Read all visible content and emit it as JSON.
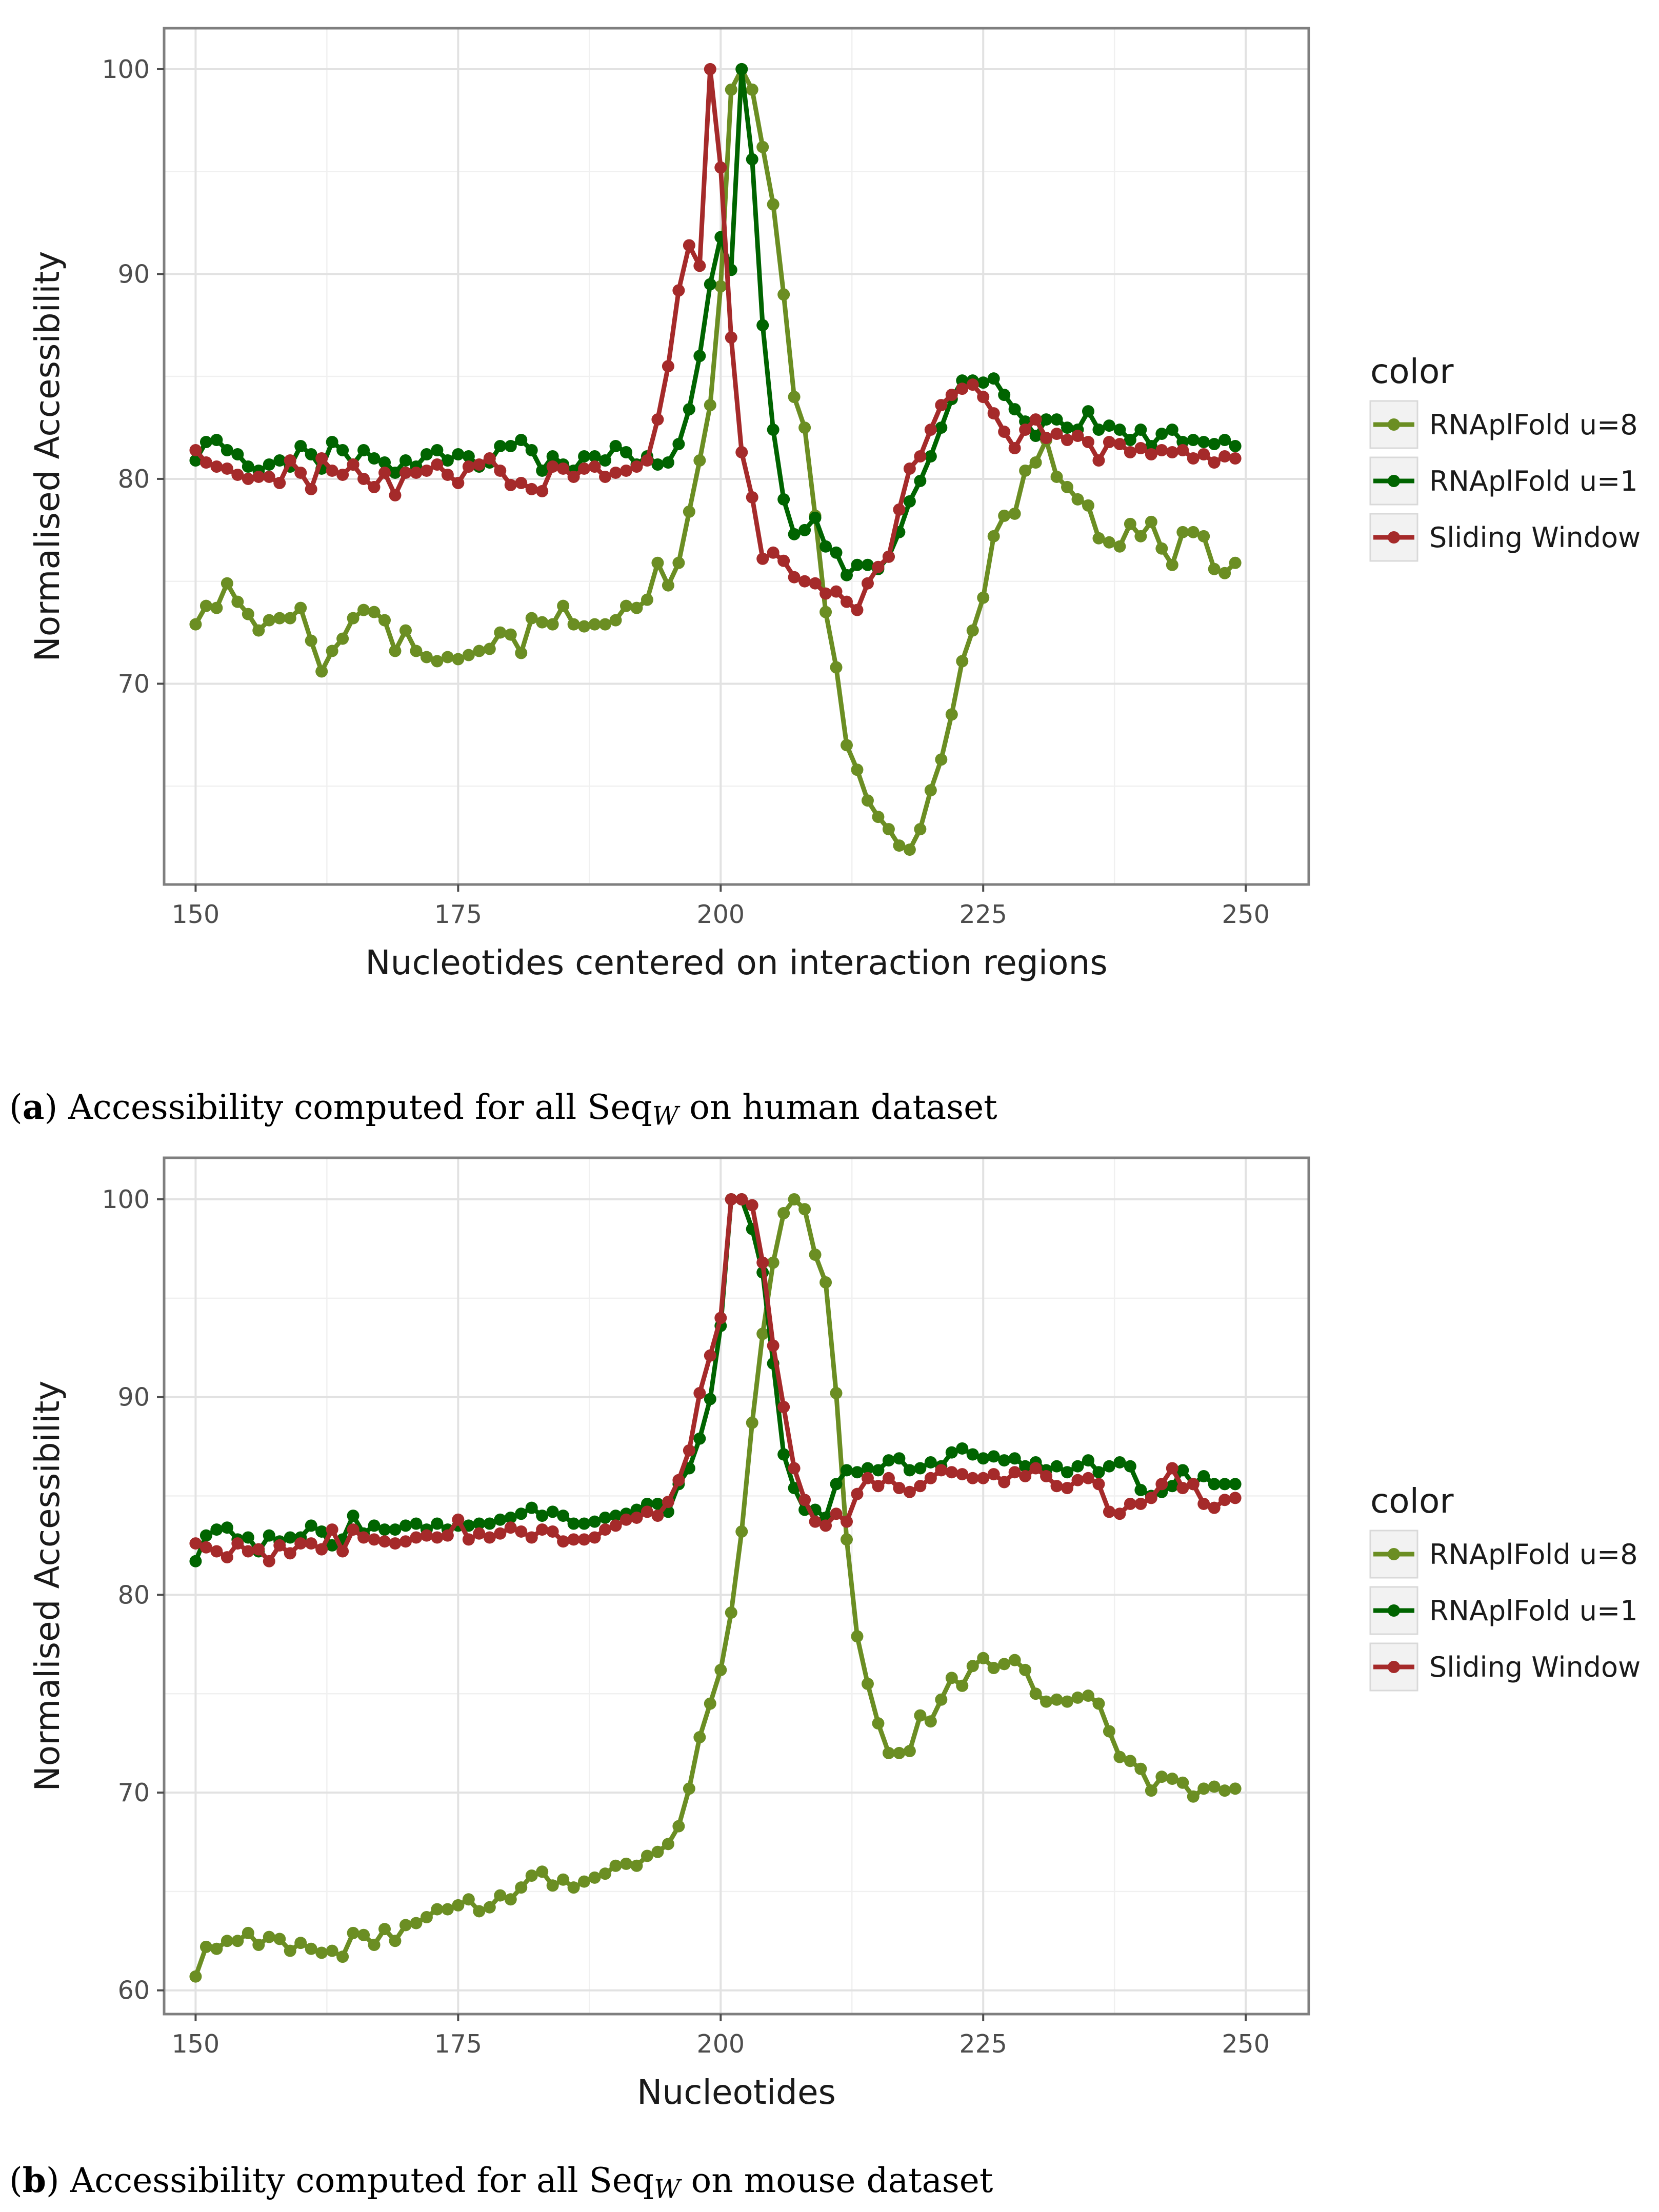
{
  "chart_data": [
    {
      "id": "a",
      "type": "line",
      "xlabel": "Nucleotides centered on interaction regions",
      "ylabel": "Normalised Accessibility",
      "xlim": [
        147,
        256
      ],
      "ylim": [
        60.2,
        102
      ],
      "xticks": [
        150,
        175,
        200,
        225,
        250
      ],
      "yticks": [
        70,
        80,
        90,
        100
      ],
      "grid": true,
      "legend": {
        "title": "color",
        "placement": "right"
      },
      "caption": {
        "label": "a",
        "text": ") Accessibility computed for all Seq",
        "sub": "W",
        "tail": " on human dataset"
      },
      "x_start": 150,
      "series": [
        {
          "name": "RNAplFold u=8",
          "color": "#6b8e23",
          "values": [
            72.9,
            73.8,
            73.7,
            74.9,
            74.0,
            73.4,
            72.6,
            73.1,
            73.2,
            73.2,
            73.7,
            72.1,
            70.6,
            71.6,
            72.2,
            73.2,
            73.6,
            73.5,
            73.1,
            71.6,
            72.6,
            71.6,
            71.3,
            71.1,
            71.3,
            71.2,
            71.4,
            71.6,
            71.7,
            72.5,
            72.4,
            71.5,
            73.2,
            73.0,
            72.9,
            73.8,
            72.9,
            72.8,
            72.9,
            72.9,
            73.1,
            73.8,
            73.7,
            74.1,
            75.9,
            74.8,
            75.9,
            78.4,
            80.9,
            83.6,
            89.4,
            99.0,
            100.0,
            99.0,
            96.2,
            93.4,
            89.0,
            84.0,
            82.5,
            78.2,
            73.5,
            70.8,
            67.0,
            65.8,
            64.3,
            63.5,
            62.9,
            62.1,
            61.9,
            62.9,
            64.8,
            66.3,
            68.5,
            71.1,
            72.6,
            74.2,
            77.2,
            78.2,
            78.3,
            80.4,
            80.8,
            81.9,
            80.1,
            79.6,
            79.0,
            78.7,
            77.1,
            76.9,
            76.7,
            77.8,
            77.2,
            77.9,
            76.6,
            75.8,
            77.4,
            77.4,
            77.2,
            75.6,
            75.4,
            75.9
          ]
        },
        {
          "name": "RNAplFold u=1",
          "color": "#006400",
          "values": [
            80.9,
            81.8,
            81.9,
            81.4,
            81.2,
            80.6,
            80.4,
            80.7,
            80.9,
            80.6,
            81.6,
            81.2,
            80.5,
            81.8,
            81.4,
            80.7,
            81.4,
            81.0,
            80.8,
            80.3,
            80.9,
            80.6,
            81.2,
            81.4,
            80.9,
            81.2,
            81.1,
            80.6,
            80.8,
            81.6,
            81.6,
            81.9,
            81.4,
            80.4,
            81.1,
            80.7,
            80.4,
            81.1,
            81.1,
            80.9,
            81.6,
            81.3,
            80.7,
            81.1,
            80.7,
            80.8,
            81.7,
            83.4,
            86.0,
            89.5,
            91.8,
            90.2,
            100.0,
            95.6,
            87.5,
            82.4,
            79.0,
            77.3,
            77.5,
            78.1,
            76.7,
            76.4,
            75.3,
            75.8,
            75.8,
            75.6,
            76.2,
            77.4,
            78.9,
            79.9,
            81.1,
            82.5,
            83.9,
            84.8,
            84.8,
            84.7,
            84.9,
            84.1,
            83.4,
            82.8,
            82.1,
            82.9,
            82.9,
            82.5,
            82.4,
            83.3,
            82.4,
            82.6,
            82.4,
            81.9,
            82.4,
            81.6,
            82.2,
            82.4,
            81.8,
            81.9,
            81.8,
            81.7,
            81.9,
            81.6
          ]
        },
        {
          "name": "Sliding Window",
          "color": "#a52a2a",
          "values": [
            81.4,
            80.8,
            80.6,
            80.5,
            80.2,
            80.0,
            80.1,
            80.1,
            79.8,
            80.9,
            80.3,
            79.5,
            81.0,
            80.4,
            80.2,
            80.7,
            80.0,
            79.6,
            80.3,
            79.2,
            80.3,
            80.3,
            80.4,
            80.7,
            80.2,
            79.8,
            80.6,
            80.7,
            81.0,
            80.4,
            79.7,
            79.8,
            79.5,
            79.4,
            80.6,
            80.5,
            80.1,
            80.5,
            80.6,
            80.1,
            80.3,
            80.4,
            80.6,
            80.9,
            82.9,
            85.5,
            89.2,
            91.4,
            90.4,
            100.0,
            95.2,
            86.9,
            81.3,
            79.1,
            76.1,
            76.4,
            76.0,
            75.2,
            75.0,
            74.9,
            74.4,
            74.5,
            74.0,
            73.6,
            74.9,
            75.7,
            76.2,
            78.5,
            80.5,
            81.1,
            82.4,
            83.6,
            84.1,
            84.4,
            84.6,
            84.0,
            83.2,
            82.3,
            81.5,
            82.4,
            82.9,
            82.0,
            82.2,
            81.9,
            82.1,
            81.8,
            80.9,
            81.8,
            81.7,
            81.3,
            81.5,
            81.2,
            81.4,
            81.3,
            81.4,
            81.0,
            81.2,
            80.8,
            81.1,
            81.0
          ]
        }
      ]
    },
    {
      "id": "b",
      "type": "line",
      "xlabel": "Nucleotides",
      "ylabel": "Normalised Accessibility",
      "xlim": [
        147,
        256
      ],
      "ylim": [
        58.8,
        102.1
      ],
      "xticks": [
        150,
        175,
        200,
        225,
        250
      ],
      "yticks": [
        60,
        70,
        80,
        90,
        100
      ],
      "grid": true,
      "legend": {
        "title": "color",
        "placement": "right"
      },
      "caption": {
        "label": "b",
        "text": ") Accessibility computed for all Seq",
        "sub": "W",
        "tail": " on mouse dataset"
      },
      "x_start": 150,
      "series": [
        {
          "name": "RNAplFold u=8",
          "color": "#6b8e23",
          "values": [
            60.7,
            62.2,
            62.1,
            62.5,
            62.5,
            62.9,
            62.3,
            62.7,
            62.6,
            62.0,
            62.4,
            62.1,
            61.9,
            62.0,
            61.7,
            62.9,
            62.8,
            62.3,
            63.1,
            62.5,
            63.3,
            63.4,
            63.7,
            64.1,
            64.1,
            64.3,
            64.6,
            64.0,
            64.2,
            64.8,
            64.6,
            65.2,
            65.8,
            66.0,
            65.3,
            65.6,
            65.2,
            65.5,
            65.7,
            65.9,
            66.3,
            66.4,
            66.3,
            66.8,
            67.0,
            67.4,
            68.3,
            70.2,
            72.8,
            74.5,
            76.2,
            79.1,
            83.2,
            88.7,
            93.2,
            96.8,
            99.3,
            100.0,
            99.5,
            97.2,
            95.8,
            90.2,
            82.8,
            77.9,
            75.5,
            73.5,
            72.0,
            72.0,
            72.1,
            73.9,
            73.6,
            74.7,
            75.8,
            75.4,
            76.4,
            76.8,
            76.3,
            76.5,
            76.7,
            76.2,
            75.0,
            74.6,
            74.7,
            74.6,
            74.8,
            74.9,
            74.5,
            73.1,
            71.8,
            71.6,
            71.2,
            70.1,
            70.8,
            70.7,
            70.5,
            69.8,
            70.2,
            70.3,
            70.1,
            70.2
          ]
        },
        {
          "name": "RNAplFold u=1",
          "color": "#006400",
          "values": [
            81.7,
            83.0,
            83.3,
            83.4,
            82.8,
            82.9,
            82.2,
            83.0,
            82.7,
            82.9,
            82.9,
            83.5,
            83.2,
            82.5,
            82.8,
            84.0,
            83.1,
            83.5,
            83.3,
            83.3,
            83.5,
            83.6,
            83.3,
            83.6,
            83.3,
            83.5,
            83.5,
            83.6,
            83.6,
            83.8,
            83.9,
            84.1,
            84.4,
            84.0,
            84.2,
            84.0,
            83.6,
            83.6,
            83.7,
            83.9,
            84.0,
            84.1,
            84.3,
            84.6,
            84.6,
            84.2,
            85.6,
            86.4,
            87.9,
            89.9,
            93.6,
            100.0,
            100.0,
            98.5,
            96.3,
            91.7,
            87.1,
            85.4,
            84.3,
            84.3,
            83.9,
            85.6,
            86.3,
            86.2,
            86.4,
            86.3,
            86.8,
            86.9,
            86.3,
            86.4,
            86.7,
            86.5,
            87.2,
            87.4,
            87.1,
            86.9,
            87.0,
            86.8,
            86.9,
            86.5,
            86.7,
            86.3,
            86.5,
            86.2,
            86.5,
            86.8,
            86.2,
            86.5,
            86.7,
            86.5,
            85.3,
            85.0,
            85.2,
            85.5,
            86.3,
            85.6,
            86.0,
            85.6,
            85.6,
            85.6
          ]
        },
        {
          "name": "Sliding Window",
          "color": "#a52a2a",
          "values": [
            82.6,
            82.4,
            82.2,
            81.9,
            82.6,
            82.2,
            82.3,
            81.7,
            82.5,
            82.1,
            82.6,
            82.6,
            82.3,
            83.3,
            82.2,
            83.3,
            82.9,
            82.8,
            82.7,
            82.6,
            82.7,
            82.9,
            83.0,
            82.9,
            83.0,
            83.8,
            82.8,
            83.1,
            82.9,
            83.1,
            83.4,
            83.2,
            82.9,
            83.3,
            83.2,
            82.7,
            82.8,
            82.8,
            82.9,
            83.3,
            83.5,
            83.8,
            83.9,
            84.2,
            84.0,
            84.7,
            85.8,
            87.3,
            90.2,
            92.1,
            94.0,
            100.0,
            100.0,
            99.7,
            96.8,
            92.6,
            89.5,
            86.4,
            84.8,
            83.7,
            83.5,
            84.1,
            83.7,
            85.1,
            85.9,
            85.5,
            85.9,
            85.4,
            85.2,
            85.5,
            85.9,
            86.3,
            86.2,
            86.1,
            85.9,
            85.9,
            86.1,
            85.7,
            86.2,
            86.0,
            86.4,
            86.0,
            85.5,
            85.4,
            85.8,
            85.9,
            85.6,
            84.2,
            84.1,
            84.6,
            84.6,
            84.9,
            85.6,
            86.4,
            85.4,
            85.6,
            84.6,
            84.4,
            84.8,
            84.9
          ]
        }
      ]
    }
  ]
}
